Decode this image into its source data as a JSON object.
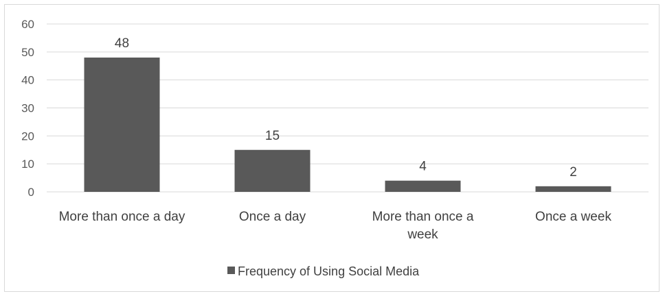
{
  "chart_data": {
    "type": "bar",
    "categories": [
      [
        "More than once a day"
      ],
      [
        "Once a day"
      ],
      [
        "More than once a",
        "week"
      ],
      [
        "Once a week"
      ]
    ],
    "series": [
      {
        "name": "Frequency of Using Social Media",
        "values": [
          48,
          15,
          4,
          2
        ],
        "color": "#595959"
      }
    ],
    "ylim": [
      0,
      60
    ],
    "yticks": [
      0,
      10,
      20,
      30,
      40,
      50,
      60
    ],
    "grid": true,
    "legend": "bottom",
    "data_labels": true,
    "gridline_color": "#d9d9d9"
  }
}
